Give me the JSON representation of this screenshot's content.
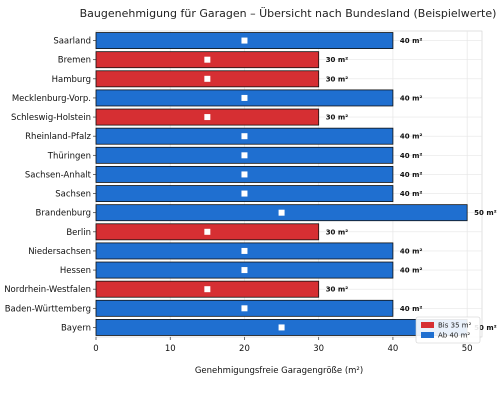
{
  "chart_data": {
    "type": "bar",
    "orientation": "horizontal",
    "title": "Baugenehmigung für Garagen – Übersicht nach Bundesland (Beispielwerte)",
    "xlabel": "Genehmigungsfreie Garagengröße (m²)",
    "ylabel": "",
    "xlim": [
      0,
      52
    ],
    "xticks": [
      0,
      10,
      20,
      30,
      40,
      50
    ],
    "grid": true,
    "legend_position": "bottom-right",
    "categories": [
      "Saarland",
      "Bremen",
      "Hamburg",
      "Mecklenburg-Vorp.",
      "Schleswig-Holstein",
      "Rheinland-Pfalz",
      "Thüringen",
      "Sachsen-Anhalt",
      "Sachsen",
      "Brandenburg",
      "Berlin",
      "Niedersachsen",
      "Hessen",
      "Nordrhein-Westfalen",
      "Baden-Württemberg",
      "Bayern"
    ],
    "values": [
      40,
      30,
      30,
      40,
      30,
      40,
      40,
      40,
      40,
      50,
      30,
      40,
      40,
      30,
      40,
      50
    ],
    "value_labels": [
      "40 m²",
      "30 m²",
      "30 m²",
      "40 m²",
      "30 m²",
      "40 m²",
      "40 m²",
      "40 m²",
      "40 m²",
      "50 m²",
      "30 m²",
      "40 m²",
      "40 m²",
      "30 m²",
      "40 m²",
      "50 m²"
    ],
    "legend": [
      {
        "label": "Bis 35 m²",
        "color": "#d62f33"
      },
      {
        "label": "Ab 40 m²",
        "color": "#1f6fd0"
      }
    ],
    "threshold": 35,
    "colors": {
      "low": "#d62f33",
      "high": "#1f6fd0",
      "marker": "#ffffff",
      "edge": "#111111",
      "grid": "#e6e6e6"
    }
  }
}
